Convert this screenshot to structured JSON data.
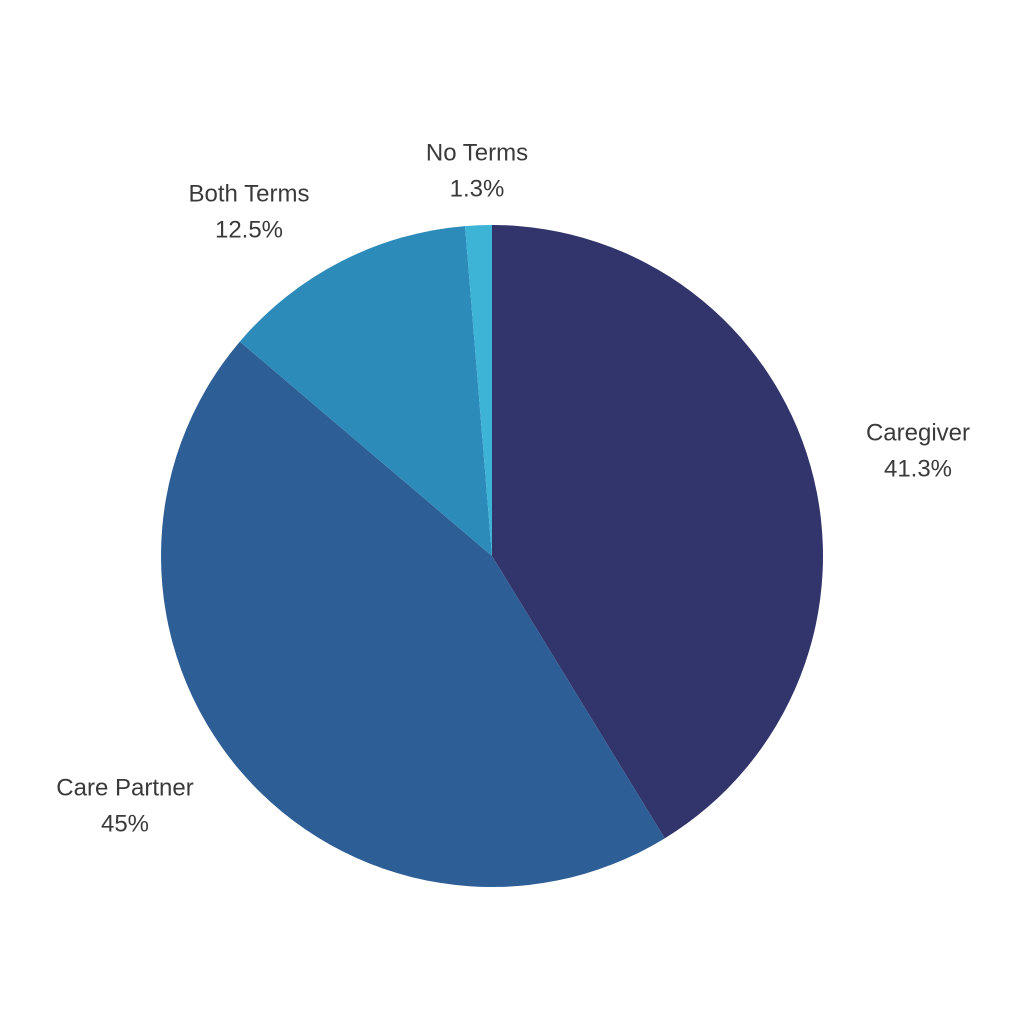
{
  "chart_data": {
    "type": "pie",
    "slices": [
      {
        "name": "Caregiver",
        "value": 41.3,
        "label": "41.3%",
        "color": "#32356b"
      },
      {
        "name": "Care Partner",
        "value": 45,
        "label": "45%",
        "color": "#2e5e96"
      },
      {
        "name": "Both Terms",
        "value": 12.5,
        "label": "12.5%",
        "color": "#2d8bba"
      },
      {
        "name": "No Terms",
        "value": 1.3,
        "label": "1.3%",
        "color": "#3db3d6"
      }
    ],
    "start_angle": "12 o'clock",
    "direction": "clockwise",
    "legend": "none",
    "labels": "outside"
  }
}
